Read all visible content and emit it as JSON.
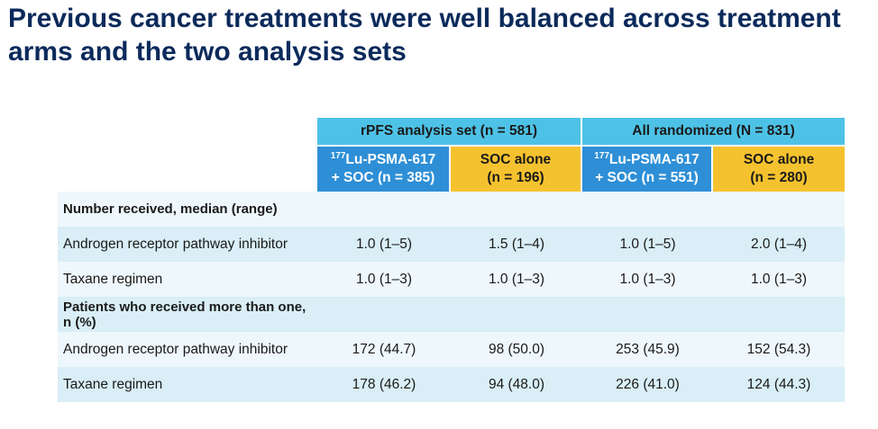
{
  "title": "Previous cancer treatments were well balanced across treatment arms and the two analysis sets",
  "table": {
    "groups": [
      {
        "label": "rPFS analysis set (n = 581)"
      },
      {
        "label": "All randomized (N = 831)"
      }
    ],
    "arms": [
      {
        "sup": "177",
        "line1_rest": "Lu-PSMA-617",
        "line2": "+ SOC (n = 385)"
      },
      {
        "line1": "SOC alone",
        "line2": "(n = 196)"
      },
      {
        "sup": "177",
        "line1_rest": "Lu-PSMA-617",
        "line2": "+ SOC (n = 551)"
      },
      {
        "line1": "SOC alone",
        "line2": "(n = 280)"
      }
    ],
    "rows": [
      {
        "label": "Number received, median (range)",
        "section": true,
        "values": [
          "",
          "",
          "",
          ""
        ]
      },
      {
        "label": "Androgen receptor pathway inhibitor",
        "section": false,
        "values": [
          "1.0 (1–5)",
          "1.5 (1–4)",
          "1.0 (1–5)",
          "2.0 (1–4)"
        ]
      },
      {
        "label": "Taxane regimen",
        "section": false,
        "values": [
          "1.0 (1–3)",
          "1.0 (1–3)",
          "1.0 (1–3)",
          "1.0 (1–3)"
        ]
      },
      {
        "label": "Patients who received more than one, n (%)",
        "section": true,
        "values": [
          "",
          "",
          "",
          ""
        ]
      },
      {
        "label": "Androgen receptor pathway inhibitor",
        "section": false,
        "values": [
          "172 (44.7)",
          "98 (50.0)",
          "253 (45.9)",
          "152 (54.3)"
        ]
      },
      {
        "label": "Taxane regimen",
        "section": false,
        "values": [
          "178 (46.2)",
          "94 (48.0)",
          "226 (41.0)",
          "124 (44.3)"
        ]
      }
    ]
  },
  "colors": {
    "title": "#0b2a5b",
    "group_header": "#4ec2e6",
    "lu_arm": "#2e8fd6",
    "soc_arm": "#f5c22f",
    "row_dark": "#d9eef6",
    "row_light": "#eef7fb"
  }
}
